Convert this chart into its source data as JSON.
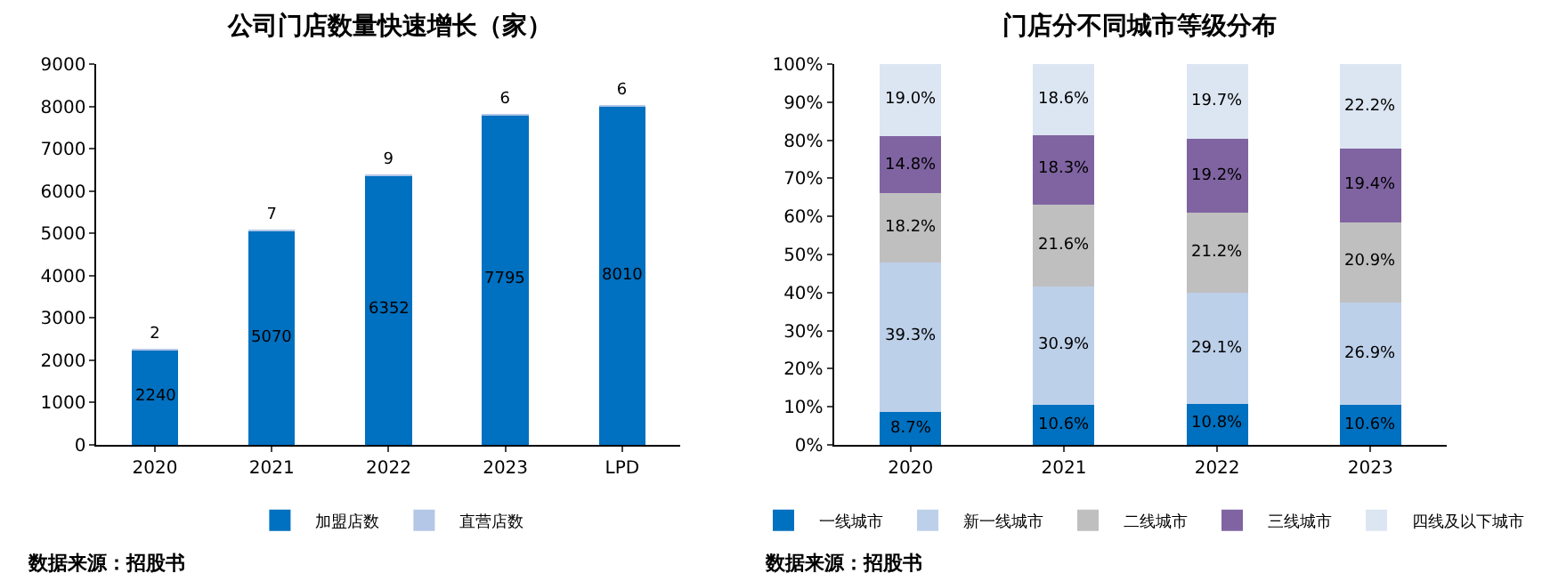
{
  "chart_data": [
    {
      "type": "bar",
      "title": "公司门店数量快速增长（家）",
      "categories": [
        "2020",
        "2021",
        "2022",
        "2023",
        "LPD"
      ],
      "stacked": true,
      "data_labels": true,
      "legend": "bottom",
      "series": [
        {
          "name": "加盟店数",
          "color": "#0070c0",
          "values": [
            2240,
            5070,
            6352,
            7795,
            8010
          ]
        },
        {
          "name": "直营店数",
          "color": "#b4c7e7",
          "values": [
            2,
            7,
            9,
            6,
            6
          ]
        }
      ],
      "ylim": [
        0,
        9000
      ],
      "yticks": [
        0,
        1000,
        2000,
        3000,
        4000,
        5000,
        6000,
        7000,
        8000,
        9000
      ],
      "annotations": [
        "数据来源：招股书"
      ]
    },
    {
      "type": "bar",
      "title": "门店分不同城市等级分布",
      "categories": [
        "2020",
        "2021",
        "2022",
        "2023"
      ],
      "stacked": true,
      "legend": "bottom",
      "series": [
        {
          "name": "一线城市",
          "color": "#0070c0",
          "values": [
            8.7,
            10.6,
            10.8,
            10.6
          ],
          "value_labels": [
            "8.7%",
            "10.6%",
            "10.8%",
            "10.6%"
          ]
        },
        {
          "name": "新一线城市",
          "color": "#bdd0ea",
          "values": [
            39.3,
            30.9,
            29.1,
            26.9
          ],
          "value_labels": [
            "39.3%",
            "30.9%",
            "29.1%",
            "26.9%"
          ]
        },
        {
          "name": "二线城市",
          "color": "#bfbfbf",
          "values": [
            18.2,
            21.6,
            21.2,
            20.9
          ],
          "value_labels": [
            "18.2%",
            "21.6%",
            "21.2%",
            "20.9%"
          ]
        },
        {
          "name": "三线城市",
          "color": "#8064a2",
          "values": [
            14.8,
            18.3,
            19.2,
            19.4
          ],
          "value_labels": [
            "14.8%",
            "18.3%",
            "19.2%",
            "19.4%"
          ]
        },
        {
          "name": "四线及以下城市",
          "color": "#dce6f2",
          "values": [
            19.0,
            18.6,
            19.7,
            22.2
          ],
          "value_labels": [
            "19.0%",
            "18.6%",
            "19.7%",
            "22.2%"
          ]
        }
      ],
      "ylim": [
        0,
        100
      ],
      "yticks": [
        {
          "value": 0,
          "label": "0%"
        },
        {
          "value": 10,
          "label": "10%"
        },
        {
          "value": 20,
          "label": "20%"
        },
        {
          "value": 30,
          "label": "30%"
        },
        {
          "value": 40,
          "label": "40%"
        },
        {
          "value": 50,
          "label": "50%"
        },
        {
          "value": 60,
          "label": "60%"
        },
        {
          "value": 70,
          "label": "70%"
        },
        {
          "value": 80,
          "label": "80%"
        },
        {
          "value": 90,
          "label": "90%"
        },
        {
          "value": 100,
          "label": "100%"
        }
      ],
      "annotations": [
        "数据来源：招股书"
      ]
    }
  ]
}
